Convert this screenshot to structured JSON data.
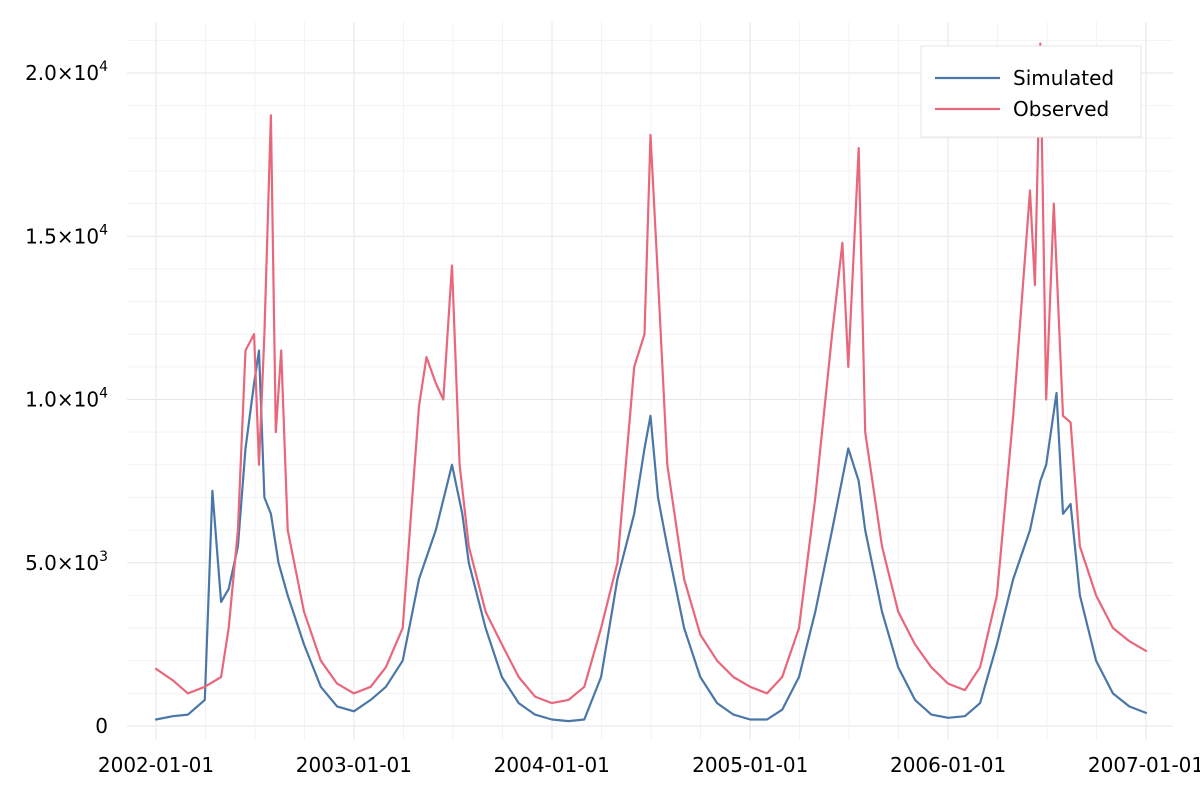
{
  "chart_data": {
    "type": "line",
    "title": "",
    "xlabel": "",
    "ylabel": "",
    "x_ticks": [
      "2002-01-01",
      "2003-01-01",
      "2004-01-01",
      "2005-01-01",
      "2006-01-01",
      "2007-01-01"
    ],
    "y_ticks": [
      {
        "value": 0,
        "mantissa": "0",
        "exponent": ""
      },
      {
        "value": 5000,
        "mantissa": "5.0×10",
        "exponent": "3"
      },
      {
        "value": 10000,
        "mantissa": "1.0×10",
        "exponent": "4"
      },
      {
        "value": 15000,
        "mantissa": "1.5×10",
        "exponent": "4"
      },
      {
        "value": 20000,
        "mantissa": "2.0×10",
        "exponent": "4"
      }
    ],
    "xlim": [
      "2002-01-01",
      "2007-01-01"
    ],
    "ylim": [
      0,
      21000
    ],
    "grid": true,
    "legend": {
      "position": "top-right",
      "entries": [
        "Simulated",
        "Observed"
      ]
    },
    "series": [
      {
        "name": "Simulated",
        "color": "#4a77a8",
        "points": [
          [
            "2002-01-01",
            200
          ],
          [
            "2002-02-01",
            300
          ],
          [
            "2002-03-01",
            350
          ],
          [
            "2002-04-01",
            800
          ],
          [
            "2002-04-15",
            7200
          ],
          [
            "2002-05-01",
            3800
          ],
          [
            "2002-05-15",
            4200
          ],
          [
            "2002-06-01",
            5500
          ],
          [
            "2002-06-15",
            8500
          ],
          [
            "2002-07-01",
            10500
          ],
          [
            "2002-07-10",
            11500
          ],
          [
            "2002-07-20",
            7000
          ],
          [
            "2002-08-01",
            6500
          ],
          [
            "2002-08-15",
            5000
          ],
          [
            "2002-09-01",
            4000
          ],
          [
            "2002-10-01",
            2500
          ],
          [
            "2002-11-01",
            1200
          ],
          [
            "2002-12-01",
            600
          ],
          [
            "2003-01-01",
            450
          ],
          [
            "2003-02-01",
            800
          ],
          [
            "2003-03-01",
            1200
          ],
          [
            "2003-04-01",
            2000
          ],
          [
            "2003-05-01",
            4500
          ],
          [
            "2003-06-01",
            6000
          ],
          [
            "2003-07-01",
            8000
          ],
          [
            "2003-07-20",
            6500
          ],
          [
            "2003-08-01",
            5000
          ],
          [
            "2003-09-01",
            3000
          ],
          [
            "2003-10-01",
            1500
          ],
          [
            "2003-11-01",
            700
          ],
          [
            "2003-12-01",
            350
          ],
          [
            "2004-01-01",
            200
          ],
          [
            "2004-02-01",
            150
          ],
          [
            "2004-03-01",
            200
          ],
          [
            "2004-04-01",
            1500
          ],
          [
            "2004-05-01",
            4500
          ],
          [
            "2004-06-01",
            6500
          ],
          [
            "2004-06-20",
            8500
          ],
          [
            "2004-07-01",
            9500
          ],
          [
            "2004-07-15",
            7000
          ],
          [
            "2004-08-01",
            5500
          ],
          [
            "2004-09-01",
            3000
          ],
          [
            "2004-10-01",
            1500
          ],
          [
            "2004-11-01",
            700
          ],
          [
            "2004-12-01",
            350
          ],
          [
            "2005-01-01",
            200
          ],
          [
            "2005-02-01",
            200
          ],
          [
            "2005-03-01",
            500
          ],
          [
            "2005-04-01",
            1500
          ],
          [
            "2005-05-01",
            3500
          ],
          [
            "2005-06-01",
            6000
          ],
          [
            "2005-07-01",
            8500
          ],
          [
            "2005-07-20",
            7500
          ],
          [
            "2005-08-01",
            6000
          ],
          [
            "2005-09-01",
            3500
          ],
          [
            "2005-10-01",
            1800
          ],
          [
            "2005-11-01",
            800
          ],
          [
            "2005-12-01",
            350
          ],
          [
            "2006-01-01",
            250
          ],
          [
            "2006-02-01",
            300
          ],
          [
            "2006-03-01",
            700
          ],
          [
            "2006-04-01",
            2500
          ],
          [
            "2006-05-01",
            4500
          ],
          [
            "2006-06-01",
            6000
          ],
          [
            "2006-06-20",
            7500
          ],
          [
            "2006-07-01",
            8000
          ],
          [
            "2006-07-20",
            10200
          ],
          [
            "2006-08-01",
            6500
          ],
          [
            "2006-08-15",
            6800
          ],
          [
            "2006-09-01",
            4000
          ],
          [
            "2006-10-01",
            2000
          ],
          [
            "2006-11-01",
            1000
          ],
          [
            "2006-12-01",
            600
          ],
          [
            "2007-01-01",
            400
          ]
        ]
      },
      {
        "name": "Observed",
        "color": "#e8677a",
        "points": [
          [
            "2002-01-01",
            1750
          ],
          [
            "2002-02-01",
            1400
          ],
          [
            "2002-03-01",
            1000
          ],
          [
            "2002-04-01",
            1200
          ],
          [
            "2002-05-01",
            1500
          ],
          [
            "2002-05-15",
            3000
          ],
          [
            "2002-06-01",
            6000
          ],
          [
            "2002-06-15",
            11500
          ],
          [
            "2002-07-01",
            12000
          ],
          [
            "2002-07-10",
            8000
          ],
          [
            "2002-07-20",
            12000
          ],
          [
            "2002-08-01",
            18700
          ],
          [
            "2002-08-10",
            9000
          ],
          [
            "2002-08-20",
            11500
          ],
          [
            "2002-09-01",
            6000
          ],
          [
            "2002-10-01",
            3500
          ],
          [
            "2002-11-01",
            2000
          ],
          [
            "2002-12-01",
            1300
          ],
          [
            "2003-01-01",
            1000
          ],
          [
            "2003-02-01",
            1200
          ],
          [
            "2003-03-01",
            1800
          ],
          [
            "2003-04-01",
            3000
          ],
          [
            "2003-05-01",
            9800
          ],
          [
            "2003-05-15",
            11300
          ],
          [
            "2003-06-01",
            10500
          ],
          [
            "2003-06-15",
            10000
          ],
          [
            "2003-07-01",
            14100
          ],
          [
            "2003-07-15",
            8000
          ],
          [
            "2003-08-01",
            5500
          ],
          [
            "2003-09-01",
            3500
          ],
          [
            "2003-10-01",
            2500
          ],
          [
            "2003-11-01",
            1500
          ],
          [
            "2003-12-01",
            900
          ],
          [
            "2004-01-01",
            700
          ],
          [
            "2004-02-01",
            800
          ],
          [
            "2004-03-01",
            1200
          ],
          [
            "2004-04-01",
            3000
          ],
          [
            "2004-05-01",
            5000
          ],
          [
            "2004-06-01",
            11000
          ],
          [
            "2004-06-20",
            12000
          ],
          [
            "2004-07-01",
            18100
          ],
          [
            "2004-07-15",
            13700
          ],
          [
            "2004-08-01",
            8000
          ],
          [
            "2004-09-01",
            4500
          ],
          [
            "2004-10-01",
            2800
          ],
          [
            "2004-11-01",
            2000
          ],
          [
            "2004-12-01",
            1500
          ],
          [
            "2005-01-01",
            1200
          ],
          [
            "2005-02-01",
            1000
          ],
          [
            "2005-03-01",
            1500
          ],
          [
            "2005-04-01",
            3000
          ],
          [
            "2005-05-01",
            7000
          ],
          [
            "2005-06-01",
            12000
          ],
          [
            "2005-06-20",
            14800
          ],
          [
            "2005-07-01",
            11000
          ],
          [
            "2005-07-20",
            17700
          ],
          [
            "2005-08-01",
            9000
          ],
          [
            "2005-09-01",
            5500
          ],
          [
            "2005-10-01",
            3500
          ],
          [
            "2005-11-01",
            2500
          ],
          [
            "2005-12-01",
            1800
          ],
          [
            "2006-01-01",
            1300
          ],
          [
            "2006-02-01",
            1100
          ],
          [
            "2006-03-01",
            1800
          ],
          [
            "2006-04-01",
            4000
          ],
          [
            "2006-05-01",
            9500
          ],
          [
            "2006-06-01",
            16400
          ],
          [
            "2006-06-10",
            13500
          ],
          [
            "2006-06-20",
            20900
          ],
          [
            "2006-07-01",
            10000
          ],
          [
            "2006-07-15",
            16000
          ],
          [
            "2006-08-01",
            9500
          ],
          [
            "2006-08-15",
            9300
          ],
          [
            "2006-09-01",
            5500
          ],
          [
            "2006-10-01",
            4000
          ],
          [
            "2006-11-01",
            3000
          ],
          [
            "2006-12-01",
            2600
          ],
          [
            "2007-01-01",
            2300
          ]
        ]
      }
    ]
  }
}
